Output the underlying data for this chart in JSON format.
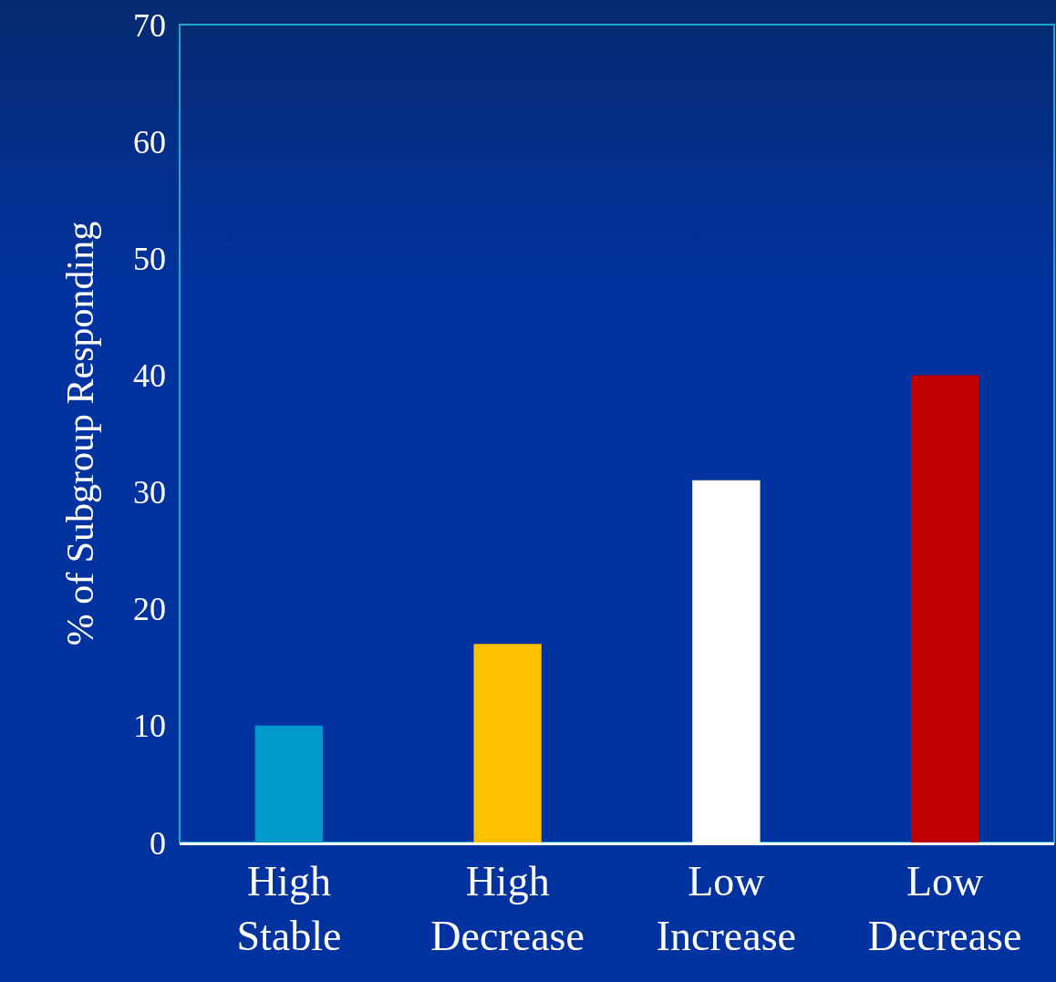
{
  "chart_data": {
    "type": "bar",
    "ylabel": "% of Subgroup Responding",
    "categories": [
      "High Stable",
      "High Decrease",
      "Low Increase",
      "Low Decrease"
    ],
    "values": [
      10,
      17,
      31,
      40
    ],
    "colors": [
      "#0099cc",
      "#ffc000",
      "#ffffff",
      "#c00000"
    ],
    "ylim": [
      0,
      70
    ],
    "yticks": [
      0,
      10,
      20,
      30,
      40,
      50,
      60,
      70
    ],
    "grid": false
  }
}
